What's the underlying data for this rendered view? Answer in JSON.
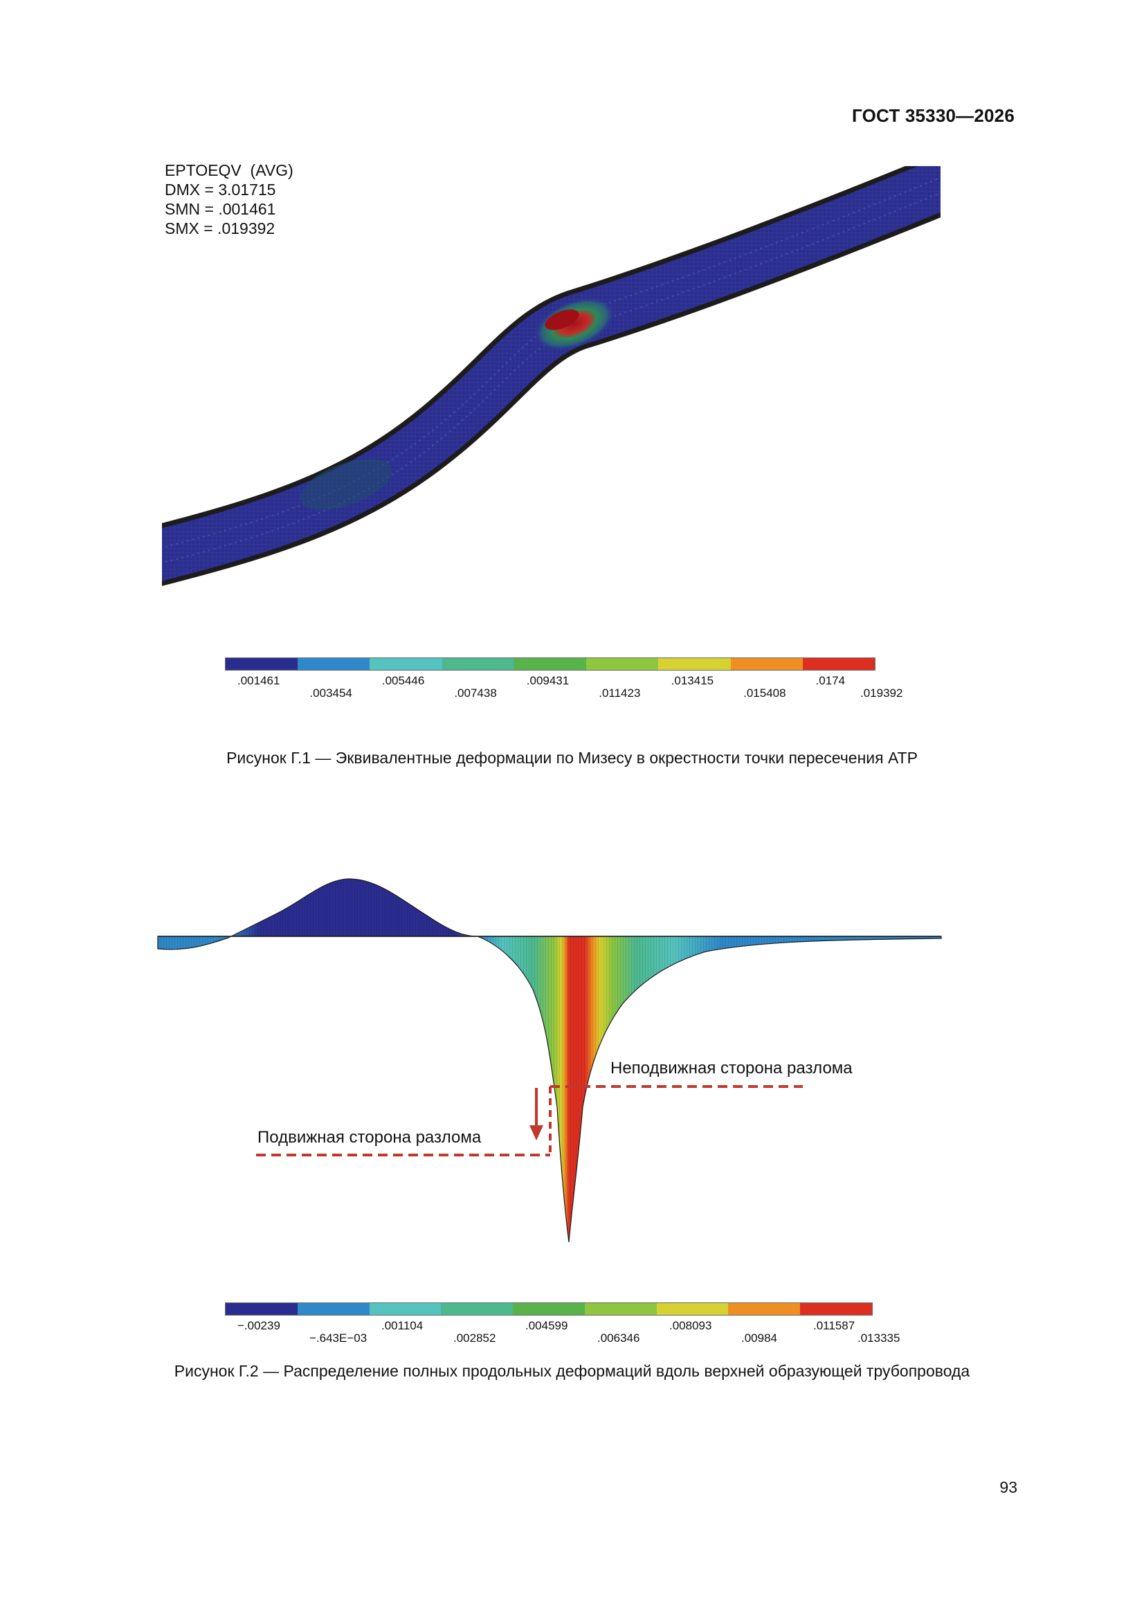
{
  "header": {
    "standard": "ГОСТ 35330—2026"
  },
  "figure1": {
    "info": {
      "line1": "EPTOEQV  (AVG)",
      "line2": "DMX = 3.01715",
      "line3": "SMN = .001461",
      "line4": "SMX = .019392"
    },
    "legend": {
      "colors": [
        "#2a2d8f",
        "#2f88c9",
        "#55c3bf",
        "#4db98f",
        "#58b34a",
        "#8ec63f",
        "#d6d231",
        "#ef8e23",
        "#dc2f21"
      ],
      "labels": [
        ".001461",
        ".003454",
        ".005446",
        ".007438",
        ".009431",
        ".011423",
        ".013415",
        ".015408",
        ".0174",
        ".019392"
      ]
    },
    "caption": "Рисунок Г.1 — Эквивалентные деформации по Мизесу в окрестности точки пересечения АТР"
  },
  "figure2": {
    "annotations": {
      "fixed_side": "Неподвижная сторона разлома",
      "moving_side": "Подвижная сторона разлома"
    },
    "annotation_color": "#c0392b",
    "legend": {
      "colors": [
        "#2a2d8f",
        "#2f88c9",
        "#55c3bf",
        "#4db98f",
        "#58b34a",
        "#8ec63f",
        "#d6d231",
        "#ef8e23",
        "#dc2f21"
      ],
      "labels": [
        "−.00239",
        "−.643E−03",
        ".001104",
        ".002852",
        ".004599",
        ".006346",
        ".008093",
        ".00984",
        ".011587",
        ".013335"
      ]
    },
    "caption": "Рисунок Г.2 — Распределение полных продольных деформаций вдоль верхней образующей трубопровода"
  },
  "footer": {
    "page_number": "93"
  }
}
